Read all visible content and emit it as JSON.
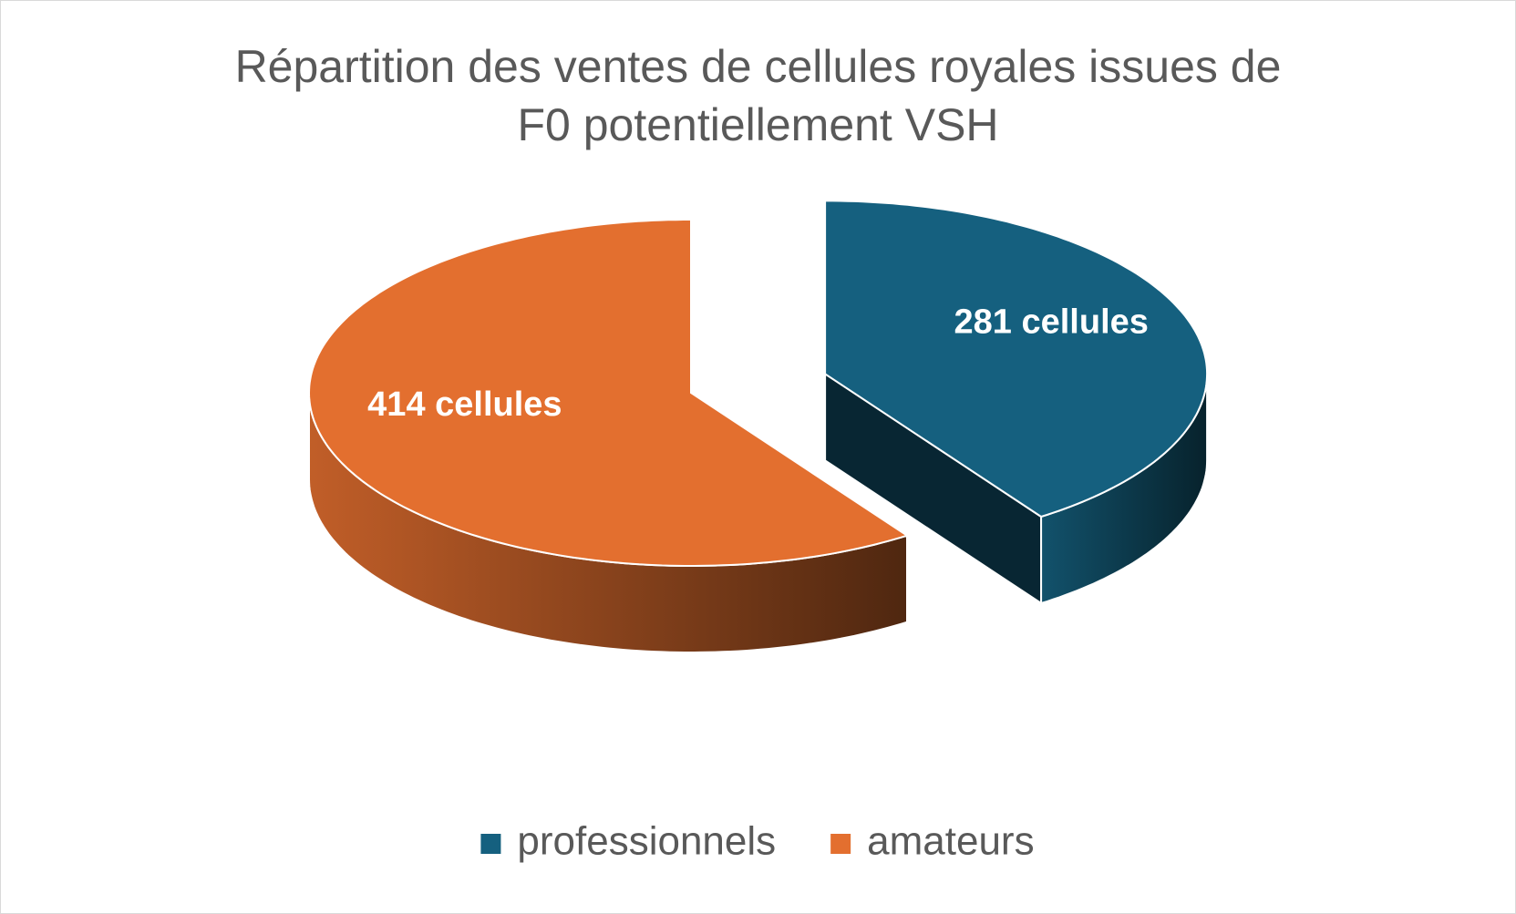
{
  "chart_data": {
    "type": "pie3d",
    "title": "Répartition des ventes de cellules royales issues de F0 potentiellement VSH",
    "categories": [
      "professionnels",
      "amateurs"
    ],
    "values": [
      281,
      414
    ],
    "value_labels": [
      "281 cellules",
      "414 cellules"
    ],
    "colors": [
      "#15607f",
      "#e36f2f"
    ],
    "exploded": [
      true,
      false
    ],
    "legend": "bottom"
  }
}
